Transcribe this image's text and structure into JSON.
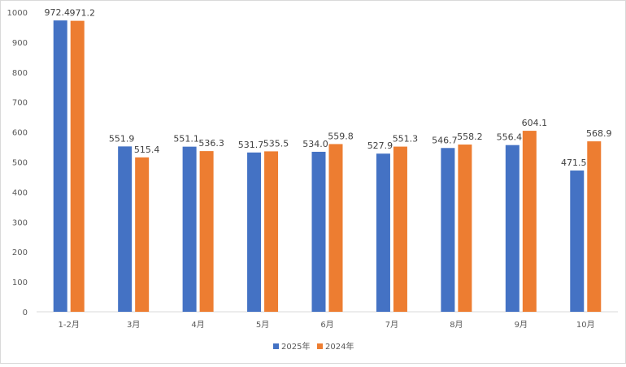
{
  "chart_data": {
    "type": "bar",
    "title": "",
    "xlabel": "",
    "ylabel": "",
    "ylim": [
      0,
      1000
    ],
    "yticks": [
      0,
      100,
      200,
      300,
      400,
      500,
      600,
      700,
      800,
      900,
      1000
    ],
    "grid": false,
    "legend_position": "bottom-center",
    "categories": [
      "1-2月",
      "3月",
      "4月",
      "5月",
      "6月",
      "7月",
      "8月",
      "9月",
      "10月"
    ],
    "series": [
      {
        "name": "2025年",
        "color": "#4472c4",
        "values": [
          972.4,
          551.9,
          551.1,
          531.7,
          534.0,
          527.9,
          546.7,
          556.4,
          471.5
        ],
        "labels": [
          "972.4",
          "551.9",
          "551.1",
          "531.7",
          "534.0",
          "527.9",
          "546.7",
          "556.4",
          "471.5"
        ]
      },
      {
        "name": "2024年",
        "color": "#ed7d31",
        "values": [
          971.2,
          515.4,
          536.3,
          535.5,
          559.8,
          551.3,
          558.2,
          604.1,
          568.9
        ],
        "labels": [
          "971.2",
          "515.4",
          "536.3",
          "535.5",
          "559.8",
          "551.3",
          "558.2",
          "604.1",
          "568.9"
        ]
      }
    ]
  }
}
